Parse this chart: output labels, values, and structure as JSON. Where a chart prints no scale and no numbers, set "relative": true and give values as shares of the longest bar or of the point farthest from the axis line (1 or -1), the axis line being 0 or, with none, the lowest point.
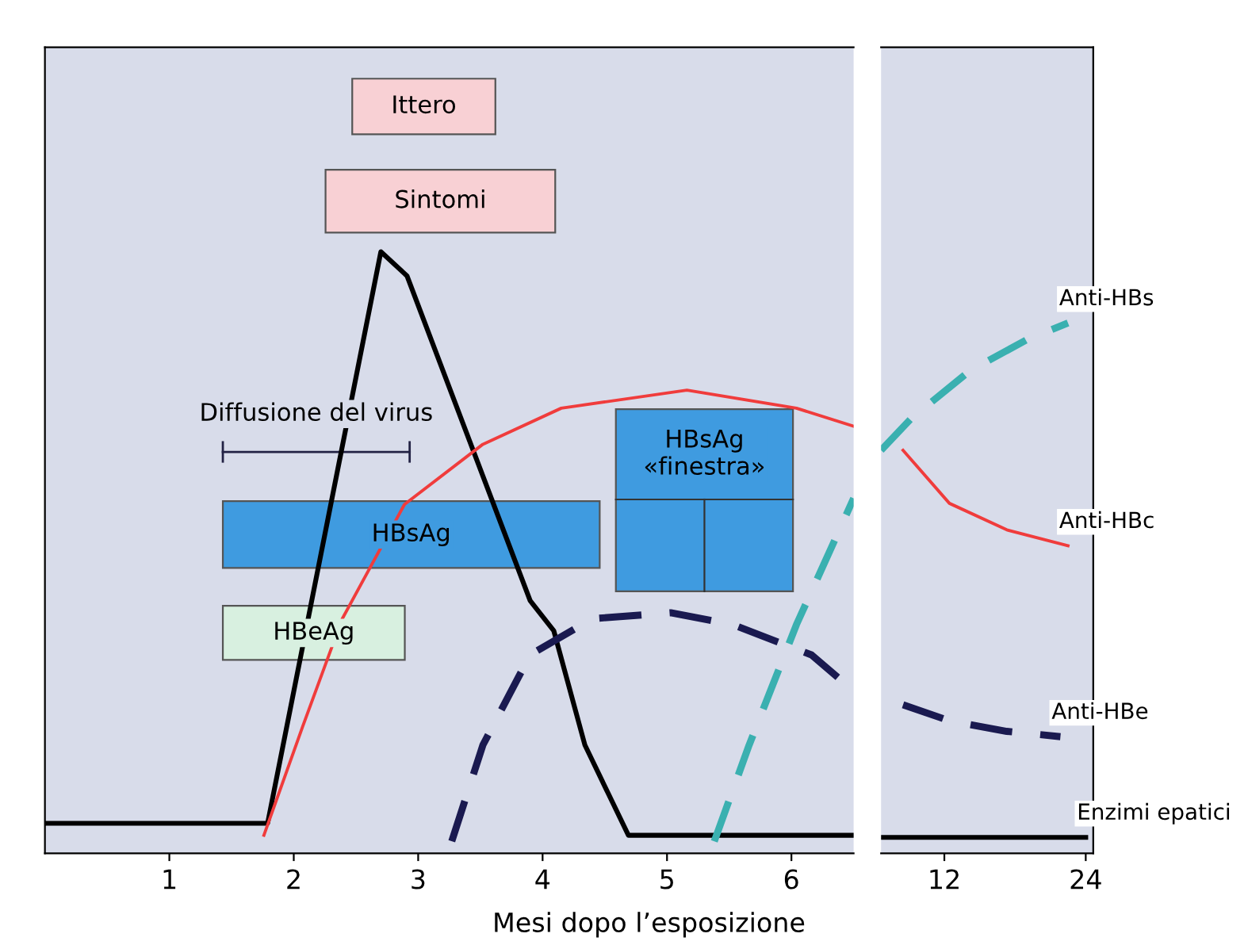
{
  "chart_data": [
    {
      "type": "line",
      "relative": true,
      "xlabel": "Mesi dopo l’esposizione",
      "xlim": [
        0,
        6.5
      ],
      "xticks": [
        1,
        2,
        3,
        4,
        5,
        6
      ],
      "marker": "none",
      "series": [
        {
          "color": "#000000",
          "line_style": "solid",
          "x": [
            0,
            1.79,
            2.7,
            2.91,
            3.9,
            4.09,
            4.34,
            4.69,
            6.5
          ],
          "values": [
            0.05,
            0.05,
            1,
            0.96,
            0.42,
            0.37,
            0.18,
            0.03,
            0.03
          ]
        },
        {
          "color": "#f03c3c",
          "line_style": "solid",
          "x": [
            1.76,
            2.07,
            2.39,
            2.89,
            3.52,
            4.15,
            5.16,
            6.04,
            6.5
          ],
          "values": [
            0.03,
            0.21,
            0.39,
            0.58,
            0.68,
            0.74,
            0.77,
            0.74,
            0.71
          ]
        },
        {
          "color": "#1a1a50",
          "line_style": "dashed",
          "x": [
            3.27,
            3.52,
            3.9,
            4.4,
            5.03,
            5.53,
            6.16,
            6.5
          ],
          "values": [
            0.02,
            0.18,
            0.33,
            0.39,
            0.4,
            0.38,
            0.33,
            0.27
          ]
        },
        {
          "color": "#3ab0b0",
          "line_style": "dashed",
          "x": [
            5.38,
            5.66,
            6.04,
            6.5
          ],
          "values": [
            0.02,
            0.18,
            0.38,
            0.59
          ]
        }
      ],
      "annotations": [
        "Ittero",
        "Sintomi",
        "Diffusione del virus",
        "HBsAg",
        "HBeAg",
        "HBsAg\n«finestra»"
      ]
    },
    {
      "type": "line",
      "relative": true,
      "log": "x",
      "xlim": [
        8.8,
        24.9
      ],
      "xticks": [
        12,
        24
      ],
      "marker": "none",
      "series": [
        {
          "name": "Enzimi epatici",
          "color": "#000000",
          "line_style": "solid",
          "x": [
            8.8,
            24
          ],
          "values": [
            0.03,
            0.03
          ]
        },
        {
          "name": "Anti-HBc",
          "color": "#f03c3c",
          "line_style": "solid",
          "x": [
            9.8,
            12.3,
            16.3,
            22.0
          ],
          "values": [
            0.76,
            0.66,
            0.61,
            0.58
          ]
        },
        {
          "name": "Anti-HBe",
          "color": "#1a1a50",
          "line_style": "dashed",
          "x": [
            9.8,
            12.3,
            16.3,
            21.2
          ],
          "values": [
            0.28,
            0.25,
            0.23,
            0.22
          ]
        },
        {
          "name": "Anti-HBs",
          "color": "#3ab0b0",
          "line_style": "dashed",
          "x": [
            8.8,
            10.2,
            13.6,
            18.1,
            22.0
          ],
          "values": [
            0.76,
            0.82,
            0.91,
            0.97,
            1
          ]
        }
      ]
    }
  ]
}
